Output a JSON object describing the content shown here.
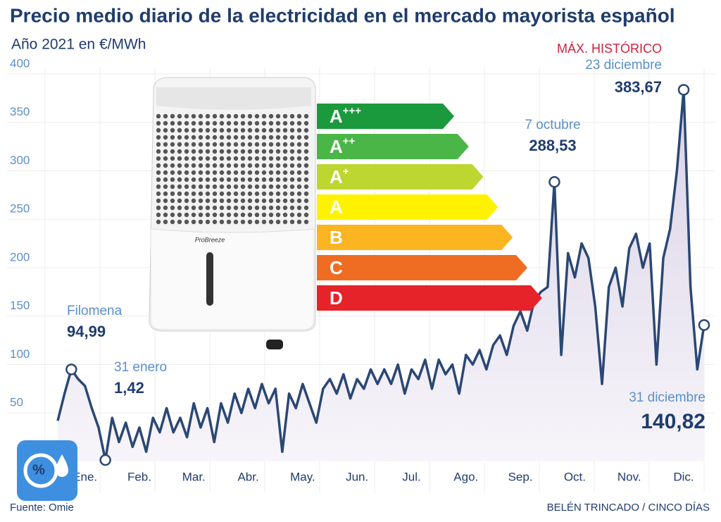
{
  "chart_data": {
    "type": "line",
    "title": "Precio medio diario de la electricidad en el mercado mayorista español",
    "subtitle": "Año 2021 en €/MWh",
    "categories": [
      null,
      null,
      null,
      null,
      "Ene.",
      null,
      null,
      null,
      null,
      null,
      null,
      null,
      "Feb.",
      null,
      null,
      null,
      null,
      null,
      null,
      null,
      "Mar.",
      null,
      null,
      null,
      null,
      null,
      null,
      null,
      "Abr.",
      null,
      null,
      null,
      null,
      null,
      null,
      null,
      "May.",
      null,
      null,
      null,
      null,
      null,
      null,
      null,
      "Jun.",
      null,
      null,
      null,
      null,
      null,
      null,
      null,
      "Jul.",
      null,
      null,
      null,
      null,
      null,
      null,
      null,
      "Ago.",
      null,
      null,
      null,
      null,
      null,
      null,
      null,
      "Sep.",
      null,
      null,
      null,
      null,
      null,
      null,
      null,
      "Oct.",
      null,
      null,
      null,
      null,
      null,
      null,
      null,
      "Nov.",
      null,
      null,
      null,
      null,
      null,
      null,
      null,
      "Dic.",
      null,
      null,
      null
    ],
    "series": [
      {
        "name": "Precio medio diario",
        "color": "#2b4774",
        "values": [
          42,
          70,
          94.99,
          85,
          78,
          55,
          35,
          1.42,
          45,
          20,
          40,
          15,
          35,
          10,
          45,
          30,
          55,
          30,
          45,
          25,
          60,
          35,
          55,
          20,
          60,
          40,
          70,
          50,
          75,
          55,
          80,
          60,
          75,
          10,
          70,
          55,
          80,
          60,
          40,
          75,
          85,
          70,
          90,
          65,
          85,
          75,
          95,
          80,
          95,
          80,
          100,
          70,
          95,
          85,
          105,
          75,
          105,
          90,
          100,
          70,
          110,
          100,
          115,
          95,
          120,
          130,
          110,
          140,
          155,
          135,
          165,
          175,
          180,
          288.53,
          110,
          215,
          190,
          225,
          210,
          160,
          80,
          180,
          200,
          160,
          220,
          235,
          200,
          225,
          100,
          210,
          240,
          300,
          383.67,
          180,
          95,
          140.82
        ]
      }
    ],
    "ylim": [
      0,
      400
    ],
    "yticks": [
      50,
      100,
      150,
      200,
      250,
      300,
      350,
      400
    ],
    "grid": true,
    "annotations": [
      {
        "label": "Filomena",
        "value": 94.99,
        "value_label": "94,99"
      },
      {
        "label": "31 enero",
        "value": 1.42,
        "value_label": "1,42"
      },
      {
        "label": "7 octubre",
        "value": 288.53,
        "value_label": "288,53"
      },
      {
        "note": "MÁX. HISTÓRICO",
        "label": "23 diciembre",
        "value": 383.67,
        "value_label": "383,67"
      },
      {
        "label": "31 diciembre",
        "value": 140.82,
        "value_label": "140,82"
      }
    ],
    "source": "Fuente: Omie",
    "credit": "BELÉN TRINCADO / CINCO DÍAS"
  },
  "overlay": {
    "energy_labels": [
      {
        "letter": "A",
        "sup": "+++",
        "color": "#1a9a3c"
      },
      {
        "letter": "A",
        "sup": "++",
        "color": "#4bb648"
      },
      {
        "letter": "A",
        "sup": "+",
        "color": "#bdd630"
      },
      {
        "letter": "A",
        "color": "#fff200"
      },
      {
        "letter": "B",
        "color": "#fbb521"
      },
      {
        "letter": "C",
        "color": "#ef6d22"
      },
      {
        "letter": "D",
        "color": "#e52329"
      }
    ],
    "brand": "ProBreeze",
    "icon_text": "%"
  }
}
